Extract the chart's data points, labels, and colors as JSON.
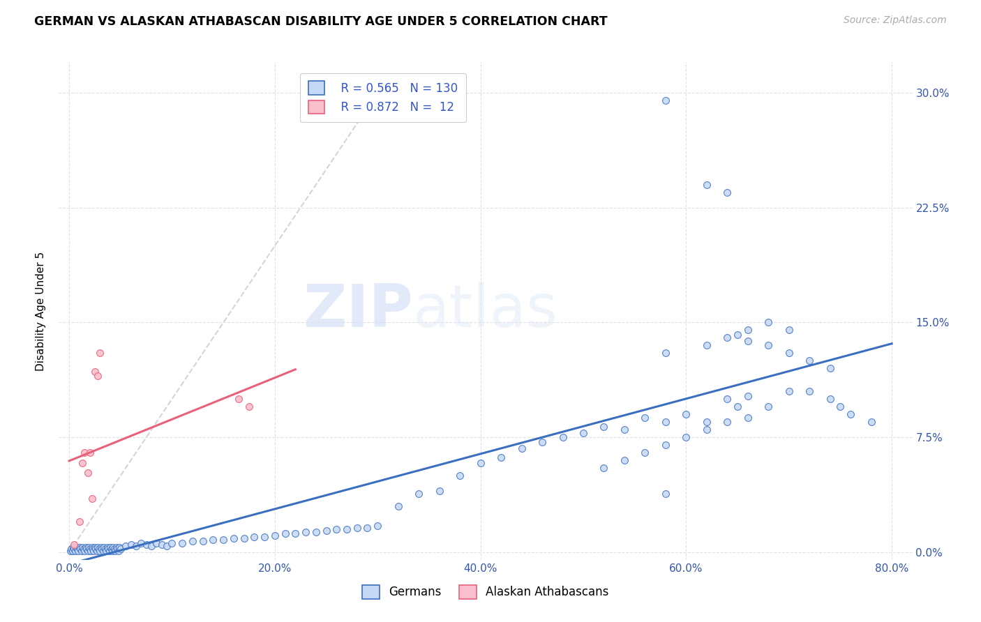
{
  "title": "GERMAN VS ALASKAN ATHABASCAN DISABILITY AGE UNDER 5 CORRELATION CHART",
  "source": "Source: ZipAtlas.com",
  "xlabel_ticks": [
    "0.0%",
    "20.0%",
    "40.0%",
    "60.0%",
    "80.0%"
  ],
  "ylabel_ticks": [
    "0.0%",
    "7.5%",
    "15.0%",
    "22.5%",
    "30.0%"
  ],
  "ylabel_label": "Disability Age Under 5",
  "xmin": -0.01,
  "xmax": 0.82,
  "ymin": -0.005,
  "ymax": 0.32,
  "legend_r1": "R = 0.565",
  "legend_n1": "N = 130",
  "legend_r2": "R = 0.872",
  "legend_n2": "N =  12",
  "color_german": "#c5d8f5",
  "color_athabascan": "#f9bfcc",
  "color_german_line": "#3a6fbf",
  "color_athabascan_line": "#e8607a",
  "color_diagonal": "#d0c8c8",
  "watermark_zip": "ZIP",
  "watermark_atlas": "atlas",
  "legend_label1": "Germans",
  "legend_label2": "Alaskan Athabascans",
  "german_x": [
    0.001,
    0.002,
    0.003,
    0.004,
    0.005,
    0.006,
    0.007,
    0.008,
    0.009,
    0.01,
    0.011,
    0.012,
    0.013,
    0.014,
    0.015,
    0.016,
    0.017,
    0.018,
    0.019,
    0.02,
    0.021,
    0.022,
    0.023,
    0.024,
    0.025,
    0.026,
    0.027,
    0.028,
    0.029,
    0.03,
    0.031,
    0.032,
    0.033,
    0.034,
    0.035,
    0.036,
    0.037,
    0.038,
    0.039,
    0.04,
    0.041,
    0.042,
    0.043,
    0.044,
    0.045,
    0.046,
    0.047,
    0.048,
    0.049,
    0.05,
    0.055,
    0.06,
    0.065,
    0.07,
    0.075,
    0.08,
    0.085,
    0.09,
    0.095,
    0.1,
    0.11,
    0.12,
    0.13,
    0.14,
    0.15,
    0.16,
    0.17,
    0.18,
    0.19,
    0.2,
    0.21,
    0.22,
    0.23,
    0.24,
    0.25,
    0.26,
    0.27,
    0.28,
    0.29,
    0.3,
    0.32,
    0.34,
    0.36,
    0.38,
    0.4,
    0.42,
    0.44,
    0.46,
    0.48,
    0.5,
    0.52,
    0.54,
    0.56,
    0.58,
    0.6,
    0.62,
    0.64,
    0.65,
    0.66,
    0.68,
    0.7,
    0.72,
    0.74,
    0.75,
    0.76,
    0.78,
    0.52,
    0.54,
    0.56,
    0.58,
    0.6,
    0.62,
    0.64,
    0.66,
    0.58,
    0.62,
    0.64,
    0.66,
    0.68,
    0.7,
    0.72,
    0.74,
    0.65,
    0.58,
    0.62,
    0.64,
    0.66,
    0.7,
    0.68,
    0.58
  ],
  "german_y": [
    0.001,
    0.002,
    0.001,
    0.003,
    0.002,
    0.001,
    0.003,
    0.002,
    0.001,
    0.003,
    0.002,
    0.001,
    0.003,
    0.002,
    0.001,
    0.003,
    0.002,
    0.001,
    0.003,
    0.002,
    0.001,
    0.003,
    0.002,
    0.001,
    0.003,
    0.002,
    0.001,
    0.003,
    0.002,
    0.001,
    0.003,
    0.002,
    0.001,
    0.003,
    0.002,
    0.001,
    0.003,
    0.002,
    0.001,
    0.003,
    0.002,
    0.001,
    0.003,
    0.002,
    0.001,
    0.003,
    0.002,
    0.001,
    0.003,
    0.002,
    0.004,
    0.005,
    0.004,
    0.006,
    0.005,
    0.004,
    0.006,
    0.005,
    0.004,
    0.006,
    0.006,
    0.007,
    0.007,
    0.008,
    0.008,
    0.009,
    0.009,
    0.01,
    0.01,
    0.011,
    0.012,
    0.012,
    0.013,
    0.013,
    0.014,
    0.015,
    0.015,
    0.016,
    0.016,
    0.017,
    0.03,
    0.038,
    0.04,
    0.05,
    0.058,
    0.062,
    0.068,
    0.072,
    0.075,
    0.078,
    0.082,
    0.08,
    0.088,
    0.085,
    0.09,
    0.085,
    0.1,
    0.095,
    0.102,
    0.095,
    0.105,
    0.105,
    0.1,
    0.095,
    0.09,
    0.085,
    0.055,
    0.06,
    0.065,
    0.07,
    0.075,
    0.08,
    0.085,
    0.088,
    0.13,
    0.135,
    0.14,
    0.138,
    0.135,
    0.13,
    0.125,
    0.12,
    0.142,
    0.295,
    0.24,
    0.235,
    0.145,
    0.145,
    0.15,
    0.038
  ],
  "athabascan_x": [
    0.005,
    0.01,
    0.013,
    0.015,
    0.018,
    0.02,
    0.022,
    0.025,
    0.028,
    0.03,
    0.165,
    0.175
  ],
  "athabascan_y": [
    0.005,
    0.02,
    0.058,
    0.065,
    0.052,
    0.065,
    0.035,
    0.118,
    0.115,
    0.13,
    0.1,
    0.095
  ]
}
